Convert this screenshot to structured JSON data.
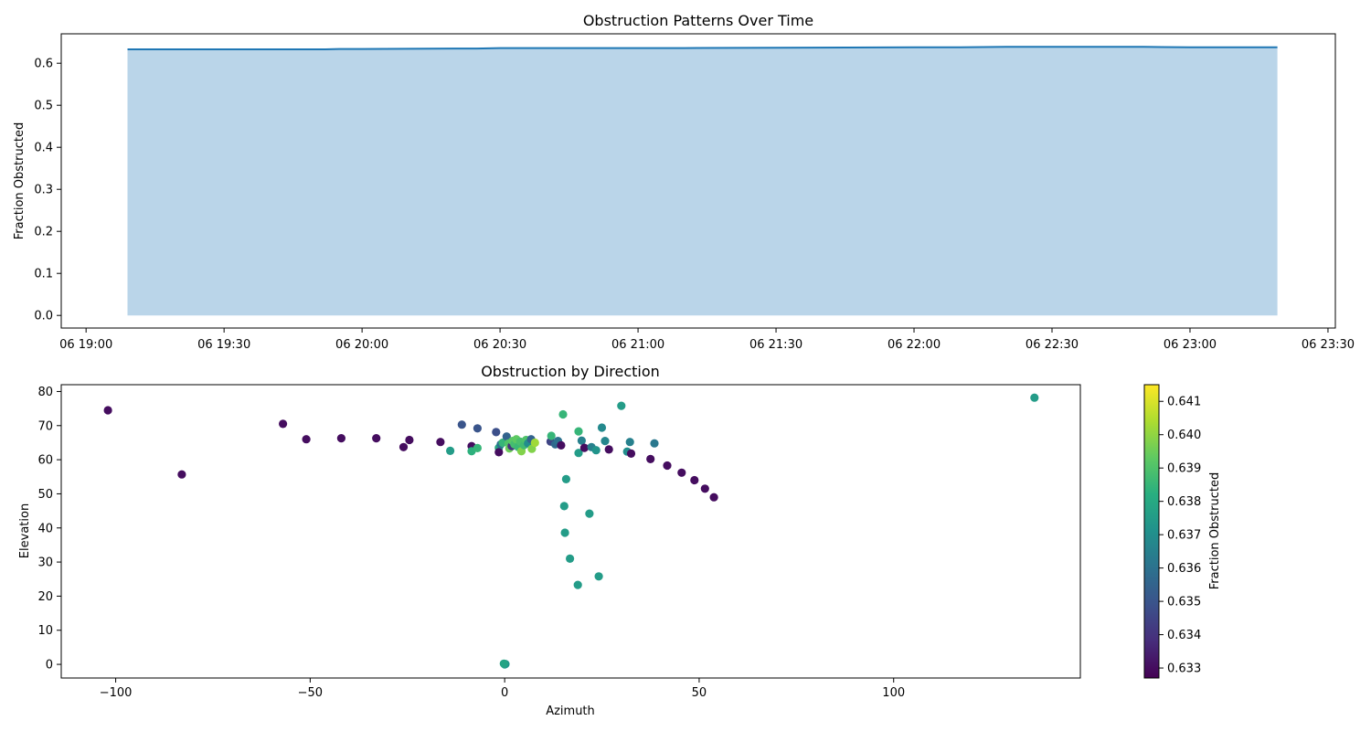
{
  "chart_data": [
    {
      "type": "area",
      "title": "Obstruction Patterns Over Time",
      "xlabel": "",
      "ylabel": "Fraction Obstructed",
      "xlim": [
        "06 19:00",
        "06 23:30"
      ],
      "ylim": [
        -0.03,
        0.67
      ],
      "x_ticks": [
        "06 19:00",
        "06 19:30",
        "06 20:00",
        "06 20:30",
        "06 21:00",
        "06 21:30",
        "06 22:00",
        "06 22:30",
        "06 23:00",
        "06 23:30"
      ],
      "y_ticks": [
        "0.0",
        "0.1",
        "0.2",
        "0.3",
        "0.4",
        "0.5",
        "0.6"
      ],
      "series": [
        {
          "x": [
            "06 19:09",
            "06 19:30",
            "06 19:52",
            "06 19:55",
            "06 20:00",
            "06 20:20",
            "06 20:25",
            "06 20:30",
            "06 20:45",
            "06 21:00",
            "06 21:10",
            "06 21:30",
            "06 22:00",
            "06 22:10",
            "06 22:20",
            "06 22:25",
            "06 22:40",
            "06 22:50",
            "06 23:00",
            "06 23:05",
            "06 23:08",
            "06 23:19"
          ],
          "values": [
            0.633,
            0.633,
            0.633,
            0.634,
            0.634,
            0.635,
            0.635,
            0.636,
            0.636,
            0.636,
            0.636,
            0.637,
            0.638,
            0.638,
            0.639,
            0.639,
            0.639,
            0.639,
            0.638,
            0.638,
            0.638,
            0.638
          ],
          "color": "#1f77b4",
          "fill_color": "#bad5e9"
        }
      ]
    },
    {
      "type": "scatter",
      "title": "Obstruction by Direction",
      "xlabel": "Azimuth",
      "ylabel": "Elevation",
      "xlim": [
        -114,
        148
      ],
      "ylim": [
        -4,
        82
      ],
      "x_ticks": [
        "−100",
        "−50",
        "0",
        "50",
        "100"
      ],
      "y_ticks": [
        "0",
        "10",
        "20",
        "30",
        "40",
        "50",
        "60",
        "70",
        "80"
      ],
      "colorbar": {
        "label": "Fraction Obstructed",
        "range": [
          0.6327,
          0.6415
        ],
        "ticks": [
          "0.633",
          "0.634",
          "0.635",
          "0.636",
          "0.637",
          "0.638",
          "0.639",
          "0.640",
          "0.641"
        ],
        "colormap": "viridis"
      },
      "points": [
        {
          "x": -102,
          "y": 74.5,
          "c": 0.633
        },
        {
          "x": -83,
          "y": 55.7,
          "c": 0.633
        },
        {
          "x": -57,
          "y": 70.5,
          "c": 0.633
        },
        {
          "x": -51,
          "y": 66.0,
          "c": 0.633
        },
        {
          "x": -42,
          "y": 66.3,
          "c": 0.633
        },
        {
          "x": -33,
          "y": 66.3,
          "c": 0.633
        },
        {
          "x": -26,
          "y": 63.7,
          "c": 0.633
        },
        {
          "x": -24.5,
          "y": 65.8,
          "c": 0.633
        },
        {
          "x": -16.5,
          "y": 65.2,
          "c": 0.633
        },
        {
          "x": -14,
          "y": 62.6,
          "c": 0.6375
        },
        {
          "x": -11,
          "y": 70.3,
          "c": 0.635
        },
        {
          "x": -8.5,
          "y": 64.0,
          "c": 0.633
        },
        {
          "x": -8.5,
          "y": 62.5,
          "c": 0.6383
        },
        {
          "x": -7,
          "y": 63.4,
          "c": 0.6385
        },
        {
          "x": -7,
          "y": 69.2,
          "c": 0.635
        },
        {
          "x": -2.2,
          "y": 68.1,
          "c": 0.6348
        },
        {
          "x": -1.5,
          "y": 63.5,
          "c": 0.638
        },
        {
          "x": -1.5,
          "y": 62.2,
          "c": 0.633
        },
        {
          "x": -1,
          "y": 64.5,
          "c": 0.636
        },
        {
          "x": -0.5,
          "y": 65.0,
          "c": 0.6385
        },
        {
          "x": 0.5,
          "y": 66.8,
          "c": 0.6355
        },
        {
          "x": 1,
          "y": 64.8,
          "c": 0.639
        },
        {
          "x": 1.2,
          "y": 63.3,
          "c": 0.6395
        },
        {
          "x": 1.8,
          "y": 64.0,
          "c": 0.634
        },
        {
          "x": 2,
          "y": 65.5,
          "c": 0.6392
        },
        {
          "x": 2.5,
          "y": 64.5,
          "c": 0.6388
        },
        {
          "x": 3,
          "y": 66.0,
          "c": 0.6393
        },
        {
          "x": 3.5,
          "y": 63.7,
          "c": 0.6386
        },
        {
          "x": 4,
          "y": 65.3,
          "c": 0.6389
        },
        {
          "x": 4.3,
          "y": 62.5,
          "c": 0.6398
        },
        {
          "x": 5,
          "y": 64.3,
          "c": 0.6387
        },
        {
          "x": 5.5,
          "y": 65.8,
          "c": 0.639
        },
        {
          "x": 6,
          "y": 64.8,
          "c": 0.637
        },
        {
          "x": 6.8,
          "y": 66.0,
          "c": 0.6355
        },
        {
          "x": 7,
          "y": 63.2,
          "c": 0.6398
        },
        {
          "x": 7.8,
          "y": 65.0,
          "c": 0.6402
        },
        {
          "x": 11.8,
          "y": 65.3,
          "c": 0.6345
        },
        {
          "x": 12,
          "y": 67.0,
          "c": 0.6385
        },
        {
          "x": 13,
          "y": 64.5,
          "c": 0.6357
        },
        {
          "x": 13.7,
          "y": 65.5,
          "c": 0.636
        },
        {
          "x": 14.5,
          "y": 64.2,
          "c": 0.633
        },
        {
          "x": 15,
          "y": 73.3,
          "c": 0.6385
        },
        {
          "x": 15.3,
          "y": 46.4,
          "c": 0.6375
        },
        {
          "x": 15.5,
          "y": 38.6,
          "c": 0.6375
        },
        {
          "x": 15.8,
          "y": 54.3,
          "c": 0.6375
        },
        {
          "x": 16.8,
          "y": 31.0,
          "c": 0.6375
        },
        {
          "x": 18.8,
          "y": 23.3,
          "c": 0.6375
        },
        {
          "x": 19,
          "y": 68.3,
          "c": 0.6385
        },
        {
          "x": 19,
          "y": 62.0,
          "c": 0.6375
        },
        {
          "x": 19.8,
          "y": 65.6,
          "c": 0.6365
        },
        {
          "x": 20.5,
          "y": 63.5,
          "c": 0.633
        },
        {
          "x": 21.8,
          "y": 44.2,
          "c": 0.6375
        },
        {
          "x": 22.3,
          "y": 63.7,
          "c": 0.6365
        },
        {
          "x": 23.5,
          "y": 62.8,
          "c": 0.6372
        },
        {
          "x": 24.2,
          "y": 25.8,
          "c": 0.6375
        },
        {
          "x": 25,
          "y": 69.4,
          "c": 0.6368
        },
        {
          "x": 25.8,
          "y": 65.5,
          "c": 0.6367
        },
        {
          "x": 26.8,
          "y": 63.0,
          "c": 0.633
        },
        {
          "x": 30,
          "y": 75.8,
          "c": 0.6375
        },
        {
          "x": 31.5,
          "y": 62.4,
          "c": 0.637
        },
        {
          "x": 32.2,
          "y": 65.2,
          "c": 0.6365
        },
        {
          "x": 32.5,
          "y": 61.8,
          "c": 0.633
        },
        {
          "x": 37.5,
          "y": 60.2,
          "c": 0.633
        },
        {
          "x": 38.5,
          "y": 64.8,
          "c": 0.6362
        },
        {
          "x": 41.8,
          "y": 58.3,
          "c": 0.633
        },
        {
          "x": 45.5,
          "y": 56.2,
          "c": 0.633
        },
        {
          "x": 48.8,
          "y": 54.0,
          "c": 0.633
        },
        {
          "x": 51.5,
          "y": 51.5,
          "c": 0.633
        },
        {
          "x": 53.8,
          "y": 49.0,
          "c": 0.633
        },
        {
          "x": 136.2,
          "y": 78.2,
          "c": 0.6375
        },
        {
          "x": 0,
          "y": 0,
          "c": 0.6375
        },
        {
          "x": 0.2,
          "y": 0.1,
          "c": 0.6372
        },
        {
          "x": -0.2,
          "y": 0.2,
          "c": 0.6378
        }
      ]
    }
  ]
}
